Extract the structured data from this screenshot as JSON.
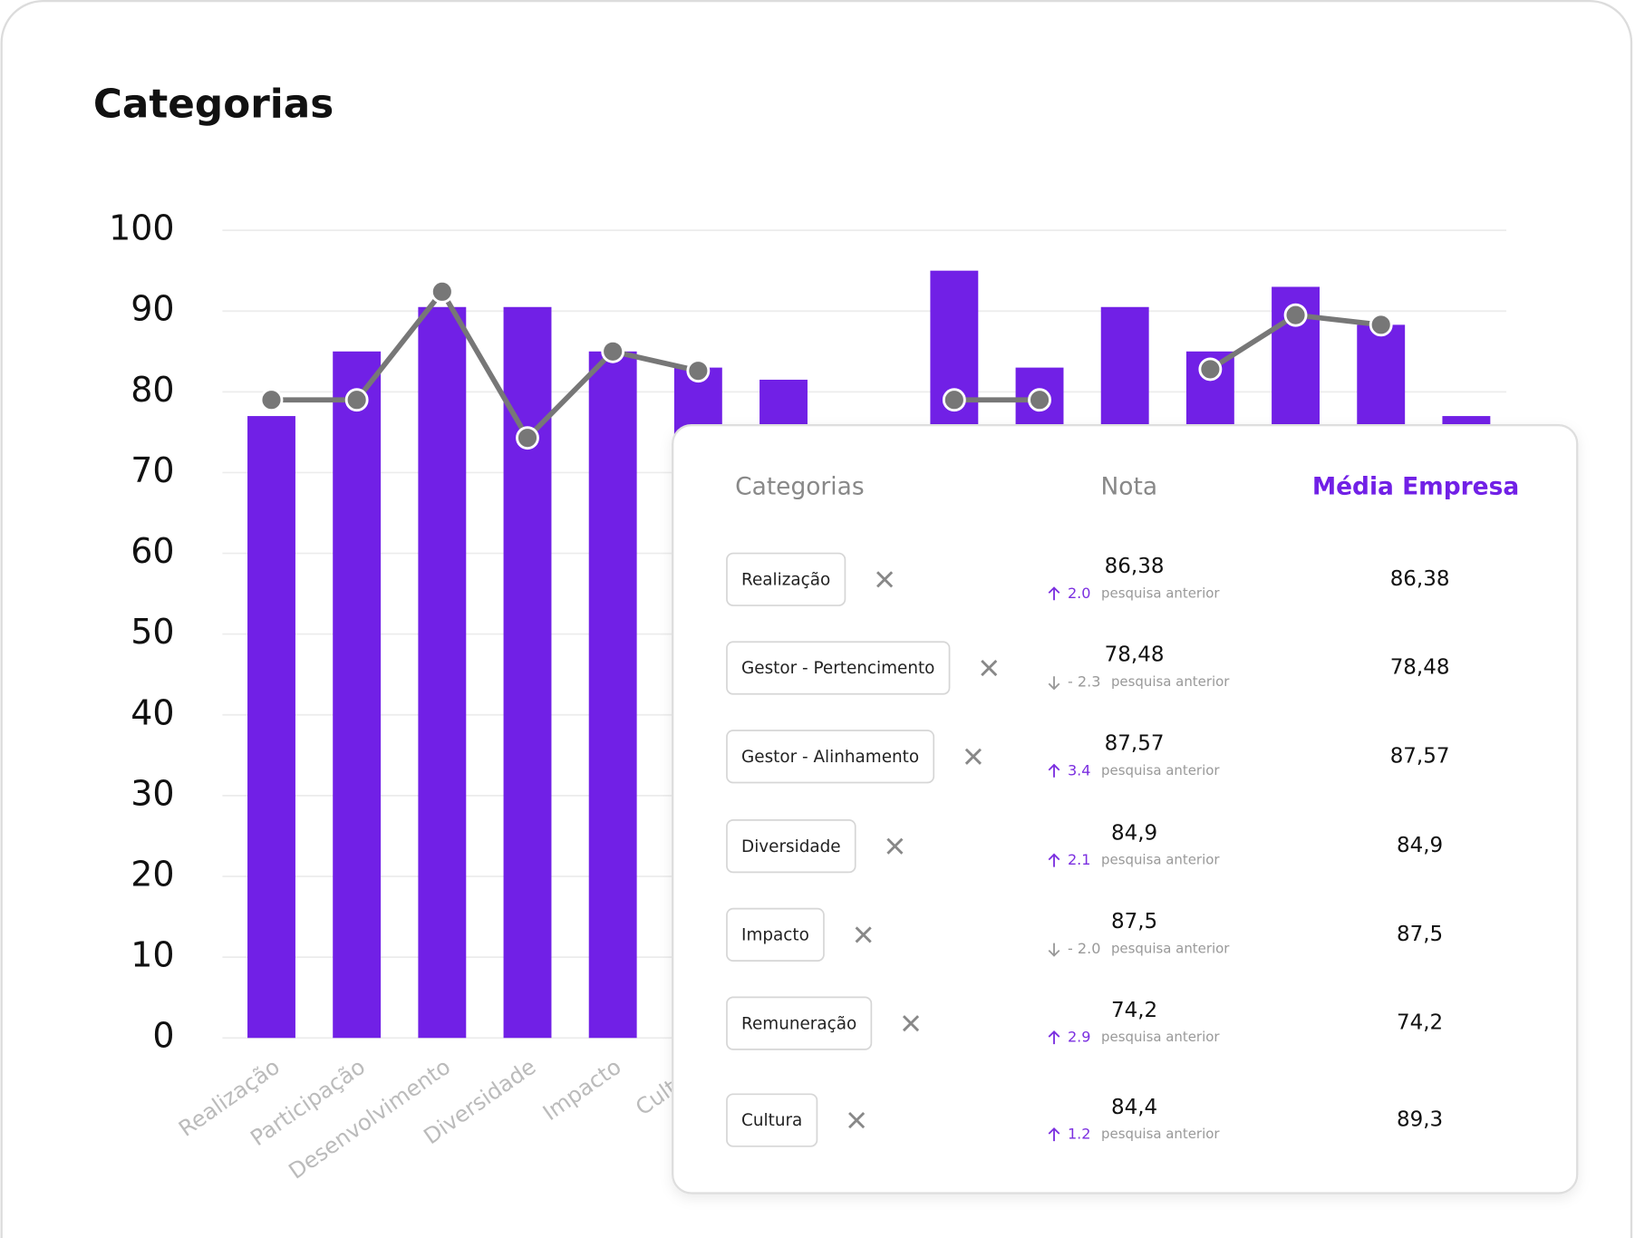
{
  "chart_data": {
    "type": "bar",
    "title": "Categorias",
    "categories": [
      "Realização",
      "Participação",
      "Desenvolvimento",
      "Diversidade",
      "Impacto",
      "Cultura",
      null,
      null,
      null,
      null,
      null,
      null,
      null,
      null,
      null
    ],
    "series": [
      {
        "type": "bar",
        "color": "#7120e6",
        "values": [
          77,
          85,
          90.5,
          90.5,
          85,
          83,
          81.5,
          null,
          95,
          83,
          90.5,
          85,
          93,
          88.3,
          77
        ]
      },
      {
        "type": "line",
        "color": "#777777",
        "values": [
          79,
          79,
          92.4,
          74.3,
          85,
          82.6,
          null,
          null,
          79,
          79,
          null,
          82.8,
          89.5,
          88.3,
          null
        ]
      }
    ],
    "ylim": [
      0,
      100
    ],
    "yticks": [
      0,
      10,
      20,
      30,
      40,
      50,
      60,
      70,
      80,
      90,
      100
    ],
    "grid": true
  },
  "table": {
    "headers": [
      "Categorias",
      "Nota",
      "Média Empresa"
    ],
    "rows": [
      {
        "category": "Realização",
        "nota": "86,38",
        "delta": "2.0",
        "trend": "up",
        "note": "pesquisa anterior",
        "media": "86,38"
      },
      {
        "category": "Gestor - Pertencimento",
        "nota": "78,48",
        "delta": "- 2.3",
        "trend": "down",
        "note": "pesquisa anterior",
        "media": "78,48"
      },
      {
        "category": "Gestor - Alinhamento",
        "nota": "87,57",
        "delta": "3.4",
        "trend": "up",
        "note": "pesquisa anterior",
        "media": "87,57"
      },
      {
        "category": "Diversidade",
        "nota": "84,9",
        "delta": "2.1",
        "trend": "up",
        "note": "pesquisa anterior",
        "media": "84,9"
      },
      {
        "category": "Impacto",
        "nota": "87,5",
        "delta": "- 2.0",
        "trend": "down",
        "note": "pesquisa anterior",
        "media": "87,5"
      },
      {
        "category": "Remuneração",
        "nota": "74,2",
        "delta": "2.9",
        "trend": "up",
        "note": "pesquisa anterior",
        "media": "74,2"
      },
      {
        "category": "Cultura",
        "nota": "84,4",
        "delta": "1.2",
        "trend": "up",
        "note": "pesquisa anterior",
        "media": "89,3"
      }
    ]
  }
}
